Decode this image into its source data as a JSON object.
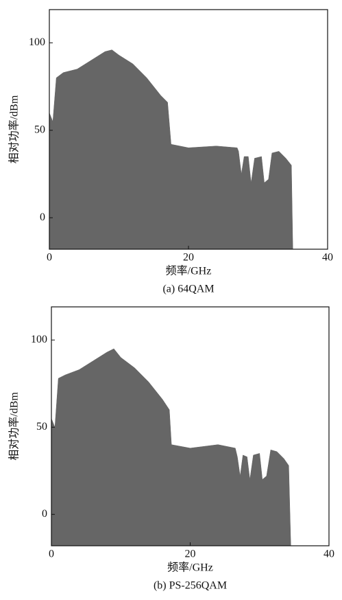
{
  "chart_data": [
    {
      "type": "area",
      "caption": "(a) 64QAM",
      "xlabel": "频率/GHz",
      "ylabel": "相对功率/dBm",
      "color": "#666666",
      "xlim": [
        0,
        40
      ],
      "ylim": [
        -18,
        119
      ],
      "xticks": [
        0,
        20,
        40
      ],
      "yticks": [
        0,
        50,
        100
      ],
      "x": [
        0,
        0.5,
        1,
        2,
        4,
        6,
        8,
        9,
        10,
        12,
        14,
        16,
        17,
        17.5,
        20,
        24,
        27,
        27.2,
        27.6,
        28,
        28.6,
        29,
        29.5,
        30.5,
        30.9,
        31.5,
        32,
        33,
        34,
        34.8,
        35
      ],
      "values": [
        60,
        55,
        80,
        83,
        85,
        90,
        95,
        96,
        93,
        88,
        80,
        70,
        66,
        42,
        40,
        41,
        40,
        38,
        25,
        35,
        35,
        20,
        34,
        35,
        20,
        22,
        37,
        38,
        34,
        30,
        -18
      ]
    },
    {
      "type": "area",
      "caption": "(b) PS-256QAM",
      "xlabel": "频率/GHz",
      "ylabel": "相对功率/dBm",
      "color": "#666666",
      "xlim": [
        0,
        40
      ],
      "ylim": [
        -18,
        119
      ],
      "xticks": [
        0,
        20,
        40
      ],
      "yticks": [
        0,
        50,
        100
      ],
      "x": [
        0,
        0.5,
        1,
        2,
        4,
        6,
        8,
        9,
        10,
        12,
        14,
        16,
        17,
        17.3,
        20,
        24,
        26.5,
        26.8,
        27.2,
        27.6,
        28.2,
        28.6,
        29.1,
        30,
        30.4,
        31,
        31.6,
        32.5,
        33.5,
        34.2,
        34.5
      ],
      "values": [
        55,
        50,
        78,
        80,
        83,
        88,
        93,
        95,
        90,
        84,
        76,
        66,
        60,
        40,
        38,
        40,
        38,
        33,
        22,
        34,
        33,
        20,
        34,
        35,
        20,
        22,
        37,
        36,
        32,
        28,
        -18
      ]
    }
  ]
}
